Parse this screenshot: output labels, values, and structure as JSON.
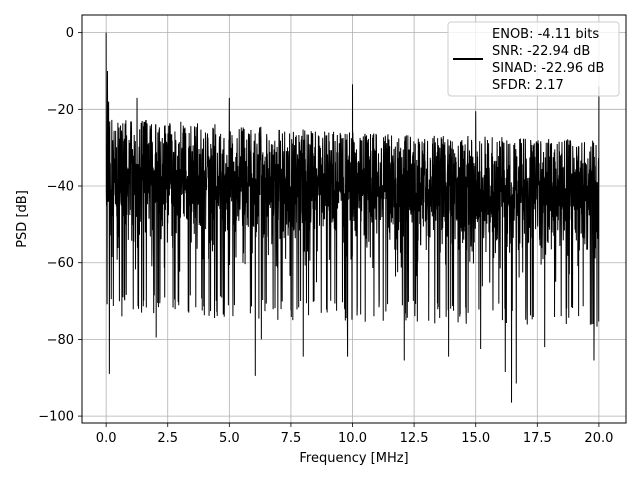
{
  "chart_data": {
    "type": "line",
    "title": "",
    "xlabel": "Frequency [MHz]",
    "ylabel": "PSD [dB]",
    "xlim": [
      -0.98,
      21.1
    ],
    "ylim": [
      -101.8,
      4.6
    ],
    "xticks": [
      0.0,
      2.5,
      5.0,
      7.5,
      10.0,
      12.5,
      15.0,
      17.5,
      20.0
    ],
    "xtick_labels": [
      "0.0",
      "2.5",
      "5.0",
      "7.5",
      "10.0",
      "12.5",
      "15.0",
      "17.5",
      "20.0"
    ],
    "yticks": [
      0,
      -20,
      -40,
      -60,
      -80,
      -100
    ],
    "ytick_labels": [
      "0",
      "−20",
      "−40",
      "−60",
      "−80",
      "−100"
    ],
    "grid": true,
    "legend_position": "top-right",
    "legend_text": [
      "ENOB: -4.11 bits",
      "SNR: -22.94 dB",
      "SINAD: -22.96 dB",
      "SFDR: 2.17"
    ],
    "line_color": "#000000",
    "series": [
      {
        "x_range": [
          0.0,
          20.0
        ],
        "noise_floor": {
          "upper_envelope": {
            "x": [
              0.0,
              2.5,
              5.0,
              10.0,
              15.0,
              20.0
            ],
            "y": [
              -22,
              -23,
              -24,
              -26,
              -27,
              -28
            ]
          },
          "typical_lower": {
            "x": [
              0.0,
              20.0
            ],
            "y": [
              -68,
              -71
            ]
          }
        },
        "peaks": [
          {
            "x": 0.0,
            "y": 0.0
          },
          {
            "x": 0.05,
            "y": -10.0
          },
          {
            "x": 0.1,
            "y": -18.0
          },
          {
            "x": 1.25,
            "y": -17.0
          },
          {
            "x": 5.0,
            "y": -17.0
          },
          {
            "x": 10.0,
            "y": -13.5
          },
          {
            "x": 15.0,
            "y": -20.5
          },
          {
            "x": 20.0,
            "y": -14.0
          }
        ],
        "dips": [
          {
            "x": 0.13,
            "y": -89
          },
          {
            "x": 2.03,
            "y": -79.5
          },
          {
            "x": 6.05,
            "y": -89.5
          },
          {
            "x": 6.3,
            "y": -80
          },
          {
            "x": 8.0,
            "y": -84.5
          },
          {
            "x": 9.8,
            "y": -84.5
          },
          {
            "x": 12.1,
            "y": -85.5
          },
          {
            "x": 13.9,
            "y": -84.5
          },
          {
            "x": 15.2,
            "y": -82.5
          },
          {
            "x": 16.2,
            "y": -88.5
          },
          {
            "x": 16.45,
            "y": -96.5
          },
          {
            "x": 16.65,
            "y": -91.5
          },
          {
            "x": 17.8,
            "y": -82
          },
          {
            "x": 19.8,
            "y": -85.5
          }
        ]
      }
    ]
  }
}
